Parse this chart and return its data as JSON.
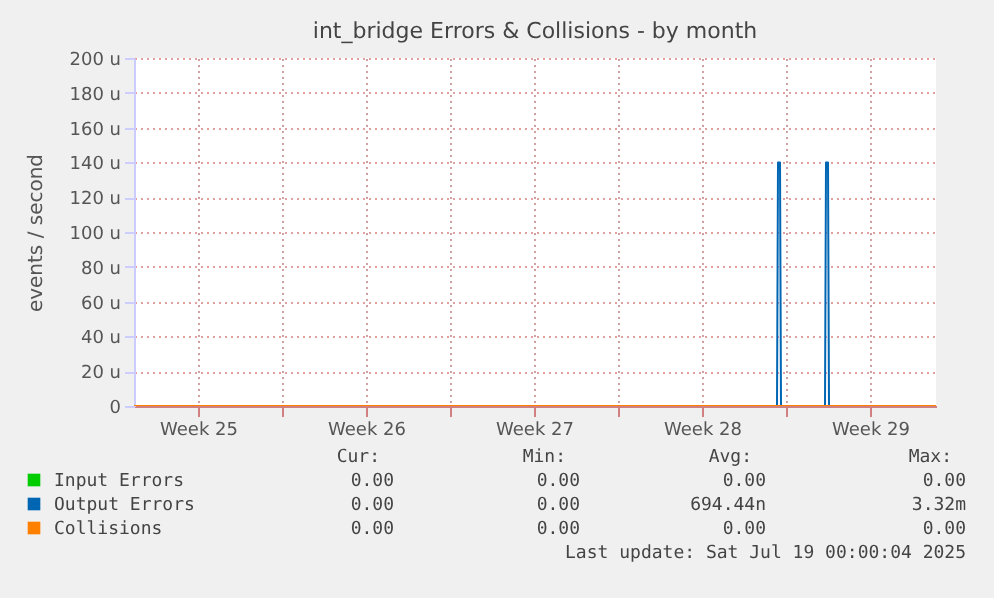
{
  "chart_data": {
    "type": "line",
    "title": "int_bridge Errors & Collisions - by month",
    "ylabel": "events / second",
    "xlim": [
      "2025-06-16T20:00",
      "2025-07-20T06:00"
    ],
    "ylim": [
      0,
      200
    ],
    "xticks": [
      {
        "value": "2025-06-19T12:00",
        "label": "Week 25"
      },
      {
        "value": "2025-06-23T00:00",
        "label": null
      },
      {
        "value": "2025-06-26T12:00",
        "label": "Week 26"
      },
      {
        "value": "2025-06-30T00:00",
        "label": null
      },
      {
        "value": "2025-07-03T12:00",
        "label": "Week 27"
      },
      {
        "value": "2025-07-07T00:00",
        "label": null
      },
      {
        "value": "2025-07-10T12:00",
        "label": "Week 28"
      },
      {
        "value": "2025-07-14T00:00",
        "label": null
      },
      {
        "value": "2025-07-17T12:00",
        "label": "Week 29"
      }
    ],
    "yticks": [
      0,
      {
        "value": 20,
        "label": "20 u"
      },
      {
        "value": 40,
        "label": "40 u"
      },
      {
        "value": 60,
        "label": "60 u"
      },
      {
        "value": 80,
        "label": "80 u"
      },
      {
        "value": 100,
        "label": "100 u"
      },
      {
        "value": 120,
        "label": "120 u"
      },
      {
        "value": 140,
        "label": "140 u"
      },
      {
        "value": 160,
        "label": "160 u"
      },
      {
        "value": 180,
        "label": "180 u"
      },
      {
        "value": 200,
        "label": "200 u"
      }
    ],
    "grid": true,
    "legend": "bottom",
    "marker": "none",
    "line_style": "solid",
    "series": [
      {
        "name": "Input Errors",
        "color": "#00cc00"
      },
      {
        "name": "Output Errors",
        "color": "#0066b3",
        "x": [
          "2025-06-16T20:00",
          "2025-07-13T15:00",
          "2025-07-13T16:00",
          "2025-07-13T18:00",
          "2025-07-13T19:00",
          "2025-07-15T15:00",
          "2025-07-15T16:00",
          "2025-07-15T18:00",
          "2025-07-15T19:00",
          "2025-07-20T06:00"
        ],
        "values": [
          0,
          0,
          140,
          140,
          0,
          0,
          140,
          140,
          0,
          0
        ]
      },
      {
        "name": "Collisions",
        "color": "#ff8000",
        "x": [
          "2025-06-16T20:00",
          "2025-07-20T06:00"
        ],
        "values": [
          0,
          0
        ]
      }
    ],
    "annotations": [
      "Cur:",
      "Min:",
      "Avg:",
      "Max:",
      "0.00",
      "0.00",
      "0.00",
      "0.00",
      "0.00",
      "0.00",
      "694.44n",
      "3.32m",
      "0.00",
      "0.00",
      "0.00",
      "0.00",
      "Last update: Sat Jul 19 00:00:04 2025"
    ]
  }
}
